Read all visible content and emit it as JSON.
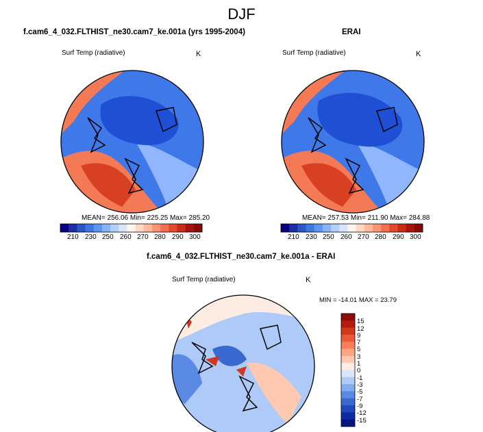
{
  "page": {
    "title": "DJF"
  },
  "colors": {
    "land_coast": "#000000",
    "cold_deep": "#1f4fd4",
    "cold_mid": "#3f78e8",
    "cold_light": "#8fb6ff",
    "warm_light": "#ffc2a6",
    "warm_mid": "#f37a55",
    "warm_deep": "#d84022"
  },
  "panels": {
    "model": {
      "title": "f.cam6_4_032.FLTHIST_ne30.cam7_ke.001a (yrs 1995-2004)",
      "variable": "Surf Temp (radiative)",
      "units": "K",
      "stats": "MEAN= 256.06  Min= 225.25  Max= 285.20"
    },
    "obs": {
      "title": "ERAI",
      "variable": "Surf Temp (radiative)",
      "units": "K",
      "stats": "MEAN= 257.53  Min= 211.90  Max= 284.88"
    },
    "diff": {
      "title": "f.cam6_4_032.FLTHIST_ne30.cam7_ke.001a - ERAI",
      "variable": "Surf Temp (radiative)",
      "units": "K",
      "stats": "MIN = -14.01  MAX =  23.79"
    }
  },
  "colorbars": {
    "abs": {
      "labels": [
        "210",
        "230",
        "250",
        "260",
        "270",
        "280",
        "290",
        "300"
      ],
      "colors": [
        "#08007f",
        "#1c2ea3",
        "#2b55c8",
        "#3c78e0",
        "#5d95ef",
        "#86b3f7",
        "#b0cff9",
        "#d8e6fb",
        "#fff5ef",
        "#ffd8c4",
        "#ffb99c",
        "#fb9573",
        "#f2704e",
        "#e24a2e",
        "#c82b18",
        "#a8140d",
        "#830a06"
      ]
    },
    "diff": {
      "labels": [
        "15",
        "12",
        "9",
        "7",
        "5",
        "3",
        "1",
        "0",
        "-1",
        "-3",
        "-5",
        "-7",
        "-9",
        "-12",
        "-15"
      ],
      "colors": [
        "#8f0b07",
        "#b51b0f",
        "#d2361d",
        "#ea5a37",
        "#f77e5a",
        "#fca484",
        "#fec9b0",
        "#fdece2",
        "#d6e6fb",
        "#adcaf8",
        "#82abf0",
        "#5a8ae3",
        "#3a69d2",
        "#1f48bd",
        "#0f2aa0",
        "#061680"
      ]
    }
  }
}
